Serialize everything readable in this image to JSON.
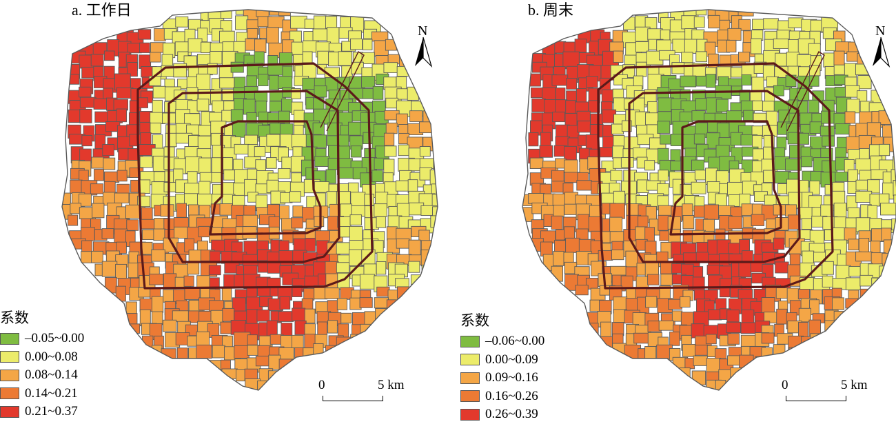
{
  "maps": [
    {
      "title": "a. 工作日",
      "legend": {
        "title": "系数",
        "classes": [
          {
            "label": "–0.05~0.00",
            "color": "#7fbc41"
          },
          {
            "label": "0.00~0.08",
            "color": "#ecec6a"
          },
          {
            "label": "0.08~0.14",
            "color": "#f4a646"
          },
          {
            "label": "0.14~0.21",
            "color": "#ec7a34"
          },
          {
            "label": "0.21~0.37",
            "color": "#e2392c"
          }
        ]
      },
      "scalebar": {
        "zero": "0",
        "five": "5 km"
      },
      "north_arrow": "N"
    },
    {
      "title": "b. 周末",
      "legend": {
        "title": "系数",
        "classes": [
          {
            "label": "–0.06~0.00",
            "color": "#7fbc41"
          },
          {
            "label": "0.00~0.09",
            "color": "#ecec6a"
          },
          {
            "label": "0.09~0.16",
            "color": "#f4a646"
          },
          {
            "label": "0.16~0.26",
            "color": "#ec7a34"
          },
          {
            "label": "0.26~0.39",
            "color": "#e2392c"
          }
        ]
      },
      "scalebar": {
        "zero": "0",
        "five": "5 km"
      },
      "north_arrow": "N"
    }
  ]
}
